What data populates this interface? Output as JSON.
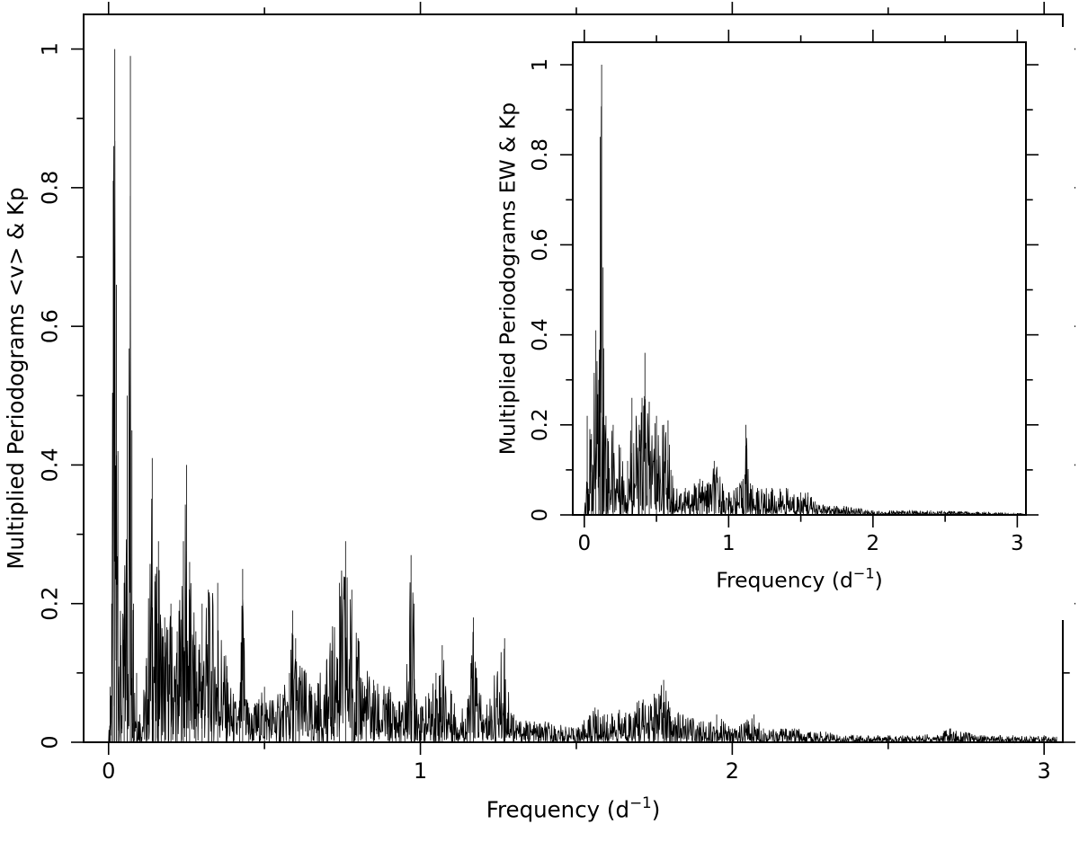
{
  "chart_data": [
    {
      "type": "line",
      "panel": "main",
      "xlabel": "Frequency (d",
      "xlabel_sup": "−1",
      "xlabel_end": ")",
      "ylabel": "Multiplied Periodograms <v> & Kp",
      "xlim": [
        -0.08,
        3.06
      ],
      "ylim": [
        0,
        1.05
      ],
      "xticks": [
        0,
        1,
        2,
        3
      ],
      "xtick_labels": [
        "0",
        "1",
        "2",
        "3"
      ],
      "yticks": [
        0,
        0.2,
        0.4,
        0.6,
        0.8,
        1
      ],
      "ytick_labels": [
        "0",
        "0.2",
        "0.4",
        "0.6",
        "0.8",
        "1"
      ],
      "grid": false,
      "series": [
        {
          "x": [
            0.0,
            0.005,
            0.01,
            0.015,
            0.02,
            0.025,
            0.03,
            0.04,
            0.05,
            0.06,
            0.07,
            0.075,
            0.08,
            0.09,
            0.1,
            0.12,
            0.14,
            0.15,
            0.16,
            0.18,
            0.2,
            0.22,
            0.24,
            0.25,
            0.26,
            0.28,
            0.3,
            0.32,
            0.35,
            0.38,
            0.4,
            0.42,
            0.43,
            0.45,
            0.5,
            0.55,
            0.58,
            0.59,
            0.6,
            0.65,
            0.7,
            0.74,
            0.76,
            0.78,
            0.8,
            0.85,
            0.9,
            0.95,
            0.97,
            0.98,
            1.0,
            1.05,
            1.07,
            1.1,
            1.15,
            1.17,
            1.2,
            1.27,
            1.3,
            1.35,
            1.4,
            1.5,
            1.56,
            1.6,
            1.7,
            1.75,
            1.78,
            1.8,
            1.9,
            1.95,
            2.0,
            2.07,
            2.1,
            2.2,
            2.3,
            2.4,
            2.5,
            2.6,
            2.7,
            2.8,
            2.9,
            3.0,
            3.04
          ],
          "y": [
            0.0,
            0.08,
            0.2,
            0.81,
            1.0,
            0.66,
            0.42,
            0.14,
            0.23,
            0.5,
            0.99,
            0.45,
            0.2,
            0.1,
            0.04,
            0.11,
            0.41,
            0.24,
            0.29,
            0.18,
            0.2,
            0.16,
            0.29,
            0.4,
            0.26,
            0.16,
            0.2,
            0.22,
            0.23,
            0.11,
            0.07,
            0.06,
            0.25,
            0.05,
            0.08,
            0.07,
            0.1,
            0.19,
            0.15,
            0.08,
            0.12,
            0.23,
            0.29,
            0.22,
            0.15,
            0.09,
            0.08,
            0.06,
            0.27,
            0.2,
            0.05,
            0.1,
            0.14,
            0.07,
            0.05,
            0.18,
            0.04,
            0.15,
            0.04,
            0.03,
            0.03,
            0.02,
            0.05,
            0.04,
            0.06,
            0.07,
            0.09,
            0.05,
            0.03,
            0.04,
            0.02,
            0.04,
            0.02,
            0.02,
            0.015,
            0.01,
            0.01,
            0.01,
            0.02,
            0.01,
            0.01,
            0.01,
            0.008
          ]
        }
      ]
    },
    {
      "type": "line",
      "panel": "inset",
      "xlabel": "Frequency (d",
      "xlabel_sup": "−1",
      "xlabel_end": ")",
      "ylabel": "Multiplied Periodograms EW & Kp",
      "xlim": [
        -0.08,
        3.06
      ],
      "ylim": [
        0,
        1.05
      ],
      "xticks": [
        0,
        1,
        2,
        3
      ],
      "xtick_labels": [
        "0",
        "1",
        "2",
        "3"
      ],
      "yticks": [
        0,
        0.2,
        0.4,
        0.6,
        0.8,
        1
      ],
      "ytick_labels": [
        "0",
        "0.2",
        "0.4",
        "0.6",
        "0.8",
        "1"
      ],
      "grid": false,
      "series": [
        {
          "x": [
            0.0,
            0.02,
            0.05,
            0.08,
            0.1,
            0.11,
            0.12,
            0.13,
            0.15,
            0.2,
            0.25,
            0.3,
            0.33,
            0.38,
            0.4,
            0.42,
            0.45,
            0.5,
            0.55,
            0.58,
            0.6,
            0.7,
            0.8,
            0.85,
            0.9,
            1.0,
            1.05,
            1.1,
            1.12,
            1.15,
            1.2,
            1.3,
            1.4,
            1.5,
            1.55,
            1.6,
            1.7,
            1.8,
            1.9,
            2.0,
            2.2,
            2.4,
            2.6,
            2.8,
            3.0,
            3.04
          ],
          "y": [
            0.0,
            0.22,
            0.18,
            0.41,
            0.3,
            0.84,
            1.0,
            0.55,
            0.22,
            0.2,
            0.15,
            0.12,
            0.26,
            0.2,
            0.26,
            0.36,
            0.25,
            0.22,
            0.2,
            0.21,
            0.1,
            0.06,
            0.08,
            0.07,
            0.12,
            0.05,
            0.06,
            0.08,
            0.2,
            0.07,
            0.06,
            0.06,
            0.06,
            0.05,
            0.05,
            0.03,
            0.02,
            0.02,
            0.015,
            0.01,
            0.01,
            0.01,
            0.008,
            0.006,
            0.004,
            0.003
          ]
        }
      ]
    }
  ]
}
